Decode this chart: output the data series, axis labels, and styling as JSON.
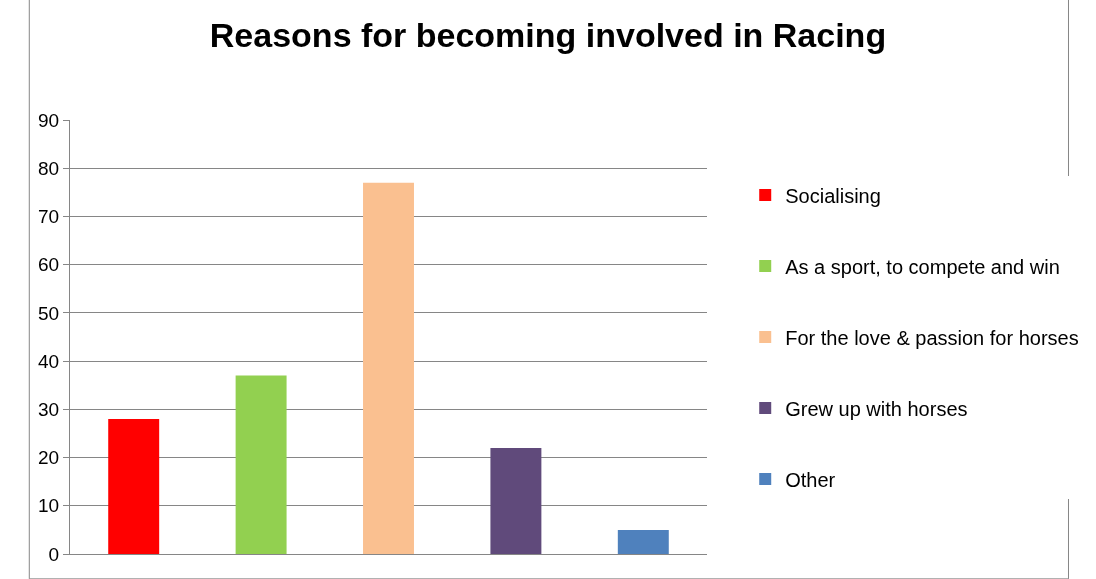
{
  "chart_data": {
    "type": "bar",
    "title": "Reasons for becoming involved in Racing",
    "categories": [
      null,
      null,
      null,
      null,
      null
    ],
    "series": [
      {
        "name": "Socialising",
        "color": "#ff0000",
        "values": [
          28,
          null,
          null,
          null,
          null
        ]
      },
      {
        "name": "As a sport, to compete and win",
        "color": "#92d050",
        "values": [
          null,
          37,
          null,
          null,
          null
        ]
      },
      {
        "name": "For the love & passion for horses",
        "color": "#fac090",
        "values": [
          null,
          null,
          77,
          null,
          null
        ]
      },
      {
        "name": "Grew up with horses",
        "color": "#604a7b",
        "values": [
          null,
          null,
          null,
          22,
          null
        ]
      },
      {
        "name": "Other",
        "color": "#4f81bd",
        "values": [
          null,
          null,
          null,
          null,
          5
        ]
      }
    ],
    "ylim": [
      0,
      90
    ],
    "yticks": [
      0,
      10,
      20,
      30,
      40,
      50,
      60,
      70,
      80,
      90
    ],
    "grid": "y",
    "legend": "right"
  }
}
